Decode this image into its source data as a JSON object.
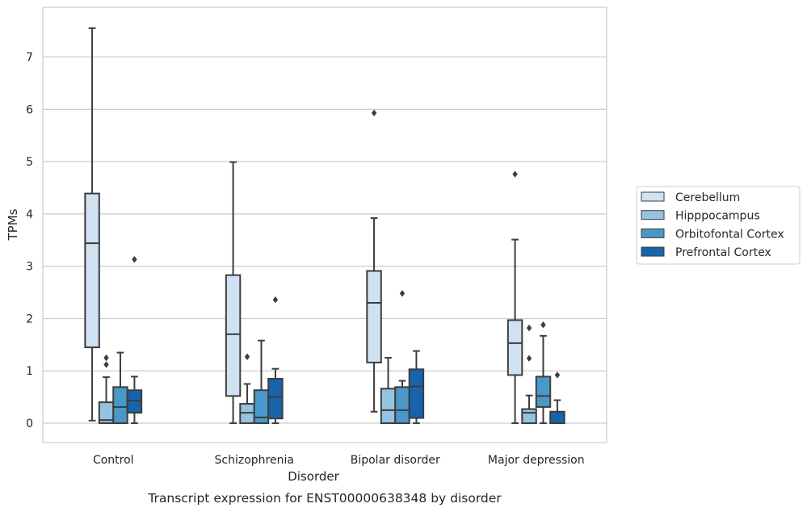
{
  "chart_data": {
    "type": "boxplot",
    "xlabel": "Disorder",
    "ylabel": "TPMs",
    "caption": "Transcript expression for ENST00000638348 by disorder",
    "ylim": [
      -0.37,
      7.95
    ],
    "yticks": [
      0,
      1,
      2,
      3,
      4,
      5,
      6,
      7
    ],
    "grid": "horizontal",
    "legend_position": "right",
    "categories": [
      "Control",
      "Schizophrenia",
      "Bipolar disorder",
      "Major depression"
    ],
    "series": [
      {
        "name": "Cerebellum",
        "color": "#d0e1f2",
        "boxes": [
          {
            "whislo": 0.05,
            "q1": 1.45,
            "med": 3.44,
            "q3": 4.39,
            "whishi": 7.55,
            "fliers": []
          },
          {
            "whislo": 0.0,
            "q1": 0.52,
            "med": 1.7,
            "q3": 2.83,
            "whishi": 4.99,
            "fliers": []
          },
          {
            "whislo": 0.22,
            "q1": 1.16,
            "med": 2.3,
            "q3": 2.91,
            "whishi": 3.92,
            "fliers": [
              5.93
            ]
          },
          {
            "whislo": 0.0,
            "q1": 0.92,
            "med": 1.53,
            "q3": 1.97,
            "whishi": 3.51,
            "fliers": [
              4.76
            ]
          }
        ]
      },
      {
        "name": "Hipppocampus",
        "color": "#94c4df",
        "boxes": [
          {
            "whislo": 0.0,
            "q1": 0.0,
            "med": 0.06,
            "q3": 0.4,
            "whishi": 0.88,
            "fliers": [
              1.12,
              1.25
            ]
          },
          {
            "whislo": 0.0,
            "q1": 0.0,
            "med": 0.2,
            "q3": 0.37,
            "whishi": 0.75,
            "fliers": [
              1.27
            ]
          },
          {
            "whislo": 0.0,
            "q1": 0.0,
            "med": 0.25,
            "q3": 0.66,
            "whishi": 1.25,
            "fliers": []
          },
          {
            "whislo": 0.0,
            "q1": 0.0,
            "med": 0.2,
            "q3": 0.27,
            "whishi": 0.53,
            "fliers": [
              1.24,
              1.82
            ]
          }
        ]
      },
      {
        "name": "Orbitofontal Cortex",
        "color": "#4a98c9",
        "boxes": [
          {
            "whislo": 0.0,
            "q1": 0.0,
            "med": 0.31,
            "q3": 0.69,
            "whishi": 1.35,
            "fliers": []
          },
          {
            "whislo": 0.0,
            "q1": 0.0,
            "med": 0.11,
            "q3": 0.63,
            "whishi": 1.58,
            "fliers": []
          },
          {
            "whislo": 0.0,
            "q1": 0.0,
            "med": 0.25,
            "q3": 0.69,
            "whishi": 0.81,
            "fliers": [
              2.48
            ]
          },
          {
            "whislo": 0.0,
            "q1": 0.31,
            "med": 0.52,
            "q3": 0.89,
            "whishi": 1.67,
            "fliers": [
              1.88
            ]
          }
        ]
      },
      {
        "name": "Prefrontal Cortex",
        "color": "#1764ab",
        "boxes": [
          {
            "whislo": 0.0,
            "q1": 0.2,
            "med": 0.43,
            "q3": 0.63,
            "whishi": 0.89,
            "fliers": [
              3.13
            ]
          },
          {
            "whislo": 0.0,
            "q1": 0.09,
            "med": 0.5,
            "q3": 0.85,
            "whishi": 1.04,
            "fliers": [
              2.36
            ]
          },
          {
            "whislo": 0.0,
            "q1": 0.1,
            "med": 0.7,
            "q3": 1.03,
            "whishi": 1.38,
            "fliers": []
          },
          {
            "whislo": 0.0,
            "q1": 0.0,
            "med": 0.0,
            "q3": 0.22,
            "whishi": 0.44,
            "fliers": [
              0.92
            ]
          }
        ]
      }
    ]
  }
}
